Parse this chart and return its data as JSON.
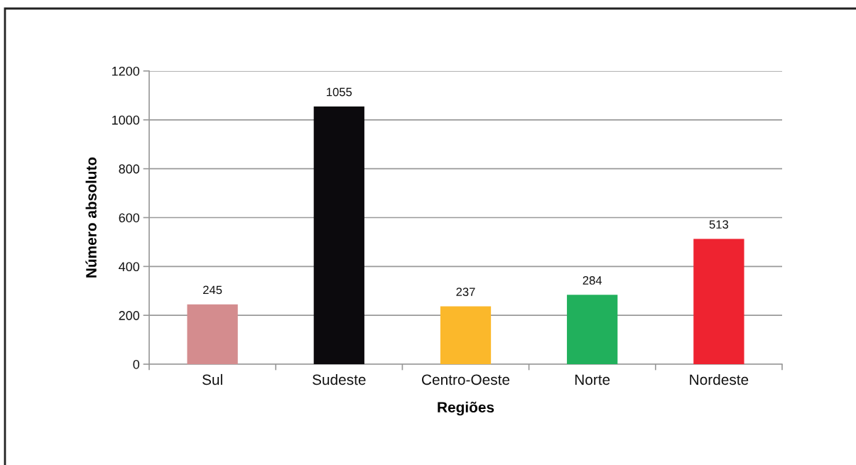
{
  "chart_data": {
    "type": "bar",
    "xlabel": "Regiões",
    "ylabel": "Número absoluto",
    "categories": [
      "Sul",
      "Sudeste",
      "Centro-Oeste",
      "Norte",
      "Nordeste"
    ],
    "values": [
      245,
      1055,
      237,
      284,
      513
    ],
    "colors": [
      "#d48c8e",
      "#0c0a0d",
      "#fbb82b",
      "#21b05c",
      "#ee2330"
    ],
    "ylim": [
      0,
      1200
    ],
    "yticks": [
      0,
      200,
      400,
      600,
      800,
      1000,
      1200
    ],
    "grid": "y",
    "data_labels": true
  }
}
